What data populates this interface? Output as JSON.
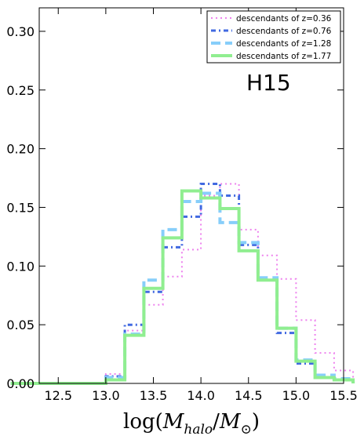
{
  "chart_data": {
    "type": "step",
    "title": "",
    "xlabel_parts": {
      "pre": "log(",
      "M1": "M",
      "sub1": "halo",
      "slash": "/",
      "M2": "M",
      "sub2": "⊙",
      "post": ")"
    },
    "ylabel": "",
    "xlim": [
      12.3,
      15.5
    ],
    "ylim": [
      0.0,
      0.32
    ],
    "x_ticks": [
      12.5,
      13.0,
      13.5,
      14.0,
      14.5,
      15.0,
      15.5
    ],
    "x_tick_labels": [
      "12.5",
      "13.0",
      "13.5",
      "14.0",
      "14.5",
      "15.0",
      "15.5"
    ],
    "y_ticks": [
      0.0,
      0.05,
      0.1,
      0.15,
      0.2,
      0.25,
      0.3
    ],
    "y_tick_labels": [
      "0.00",
      "0.05",
      "0.10",
      "0.15",
      "0.20",
      "0.25",
      "0.30"
    ],
    "grid": false,
    "legend_position": "top-right",
    "annotation": "H15",
    "bin_edges": [
      12.0,
      12.2,
      12.4,
      12.6,
      12.8,
      13.0,
      13.2,
      13.4,
      13.6,
      13.8,
      14.0,
      14.2,
      14.4,
      14.6,
      14.8,
      15.0,
      15.2,
      15.4,
      15.6
    ],
    "series": [
      {
        "name": "descendants of z=0.36",
        "color": "#ee82ee",
        "dash": "2,4",
        "width": 2,
        "values": [
          0,
          0,
          0,
          0,
          0,
          0.008,
          0.045,
          0.067,
          0.091,
          0.114,
          0.16,
          0.17,
          0.131,
          0.109,
          0.089,
          0.054,
          0.026,
          0.011
        ]
      },
      {
        "name": "descendants of z=0.76",
        "color": "#4169e1",
        "dash": "6,4,2,4",
        "width": 3,
        "values": [
          0,
          0,
          0,
          0,
          0,
          0.006,
          0.05,
          0.078,
          0.116,
          0.142,
          0.17,
          0.16,
          0.118,
          0.088,
          0.043,
          0.017,
          0.005,
          0.003
        ]
      },
      {
        "name": "descendants of z=1.28",
        "color": "#87cefa",
        "dash": "12,6",
        "width": 4,
        "values": [
          0,
          0,
          0,
          0,
          0,
          0.005,
          0.042,
          0.088,
          0.131,
          0.155,
          0.162,
          0.137,
          0.12,
          0.09,
          0.047,
          0.02,
          0.007,
          0.004
        ]
      },
      {
        "name": "descendants of z=1.77",
        "color": "#90ee90",
        "dash": "none",
        "width": 4,
        "values": [
          0,
          0,
          0,
          0,
          0,
          0.003,
          0.041,
          0.081,
          0.124,
          0.164,
          0.158,
          0.149,
          0.113,
          0.088,
          0.047,
          0.019,
          0.005,
          0.003
        ]
      }
    ]
  }
}
